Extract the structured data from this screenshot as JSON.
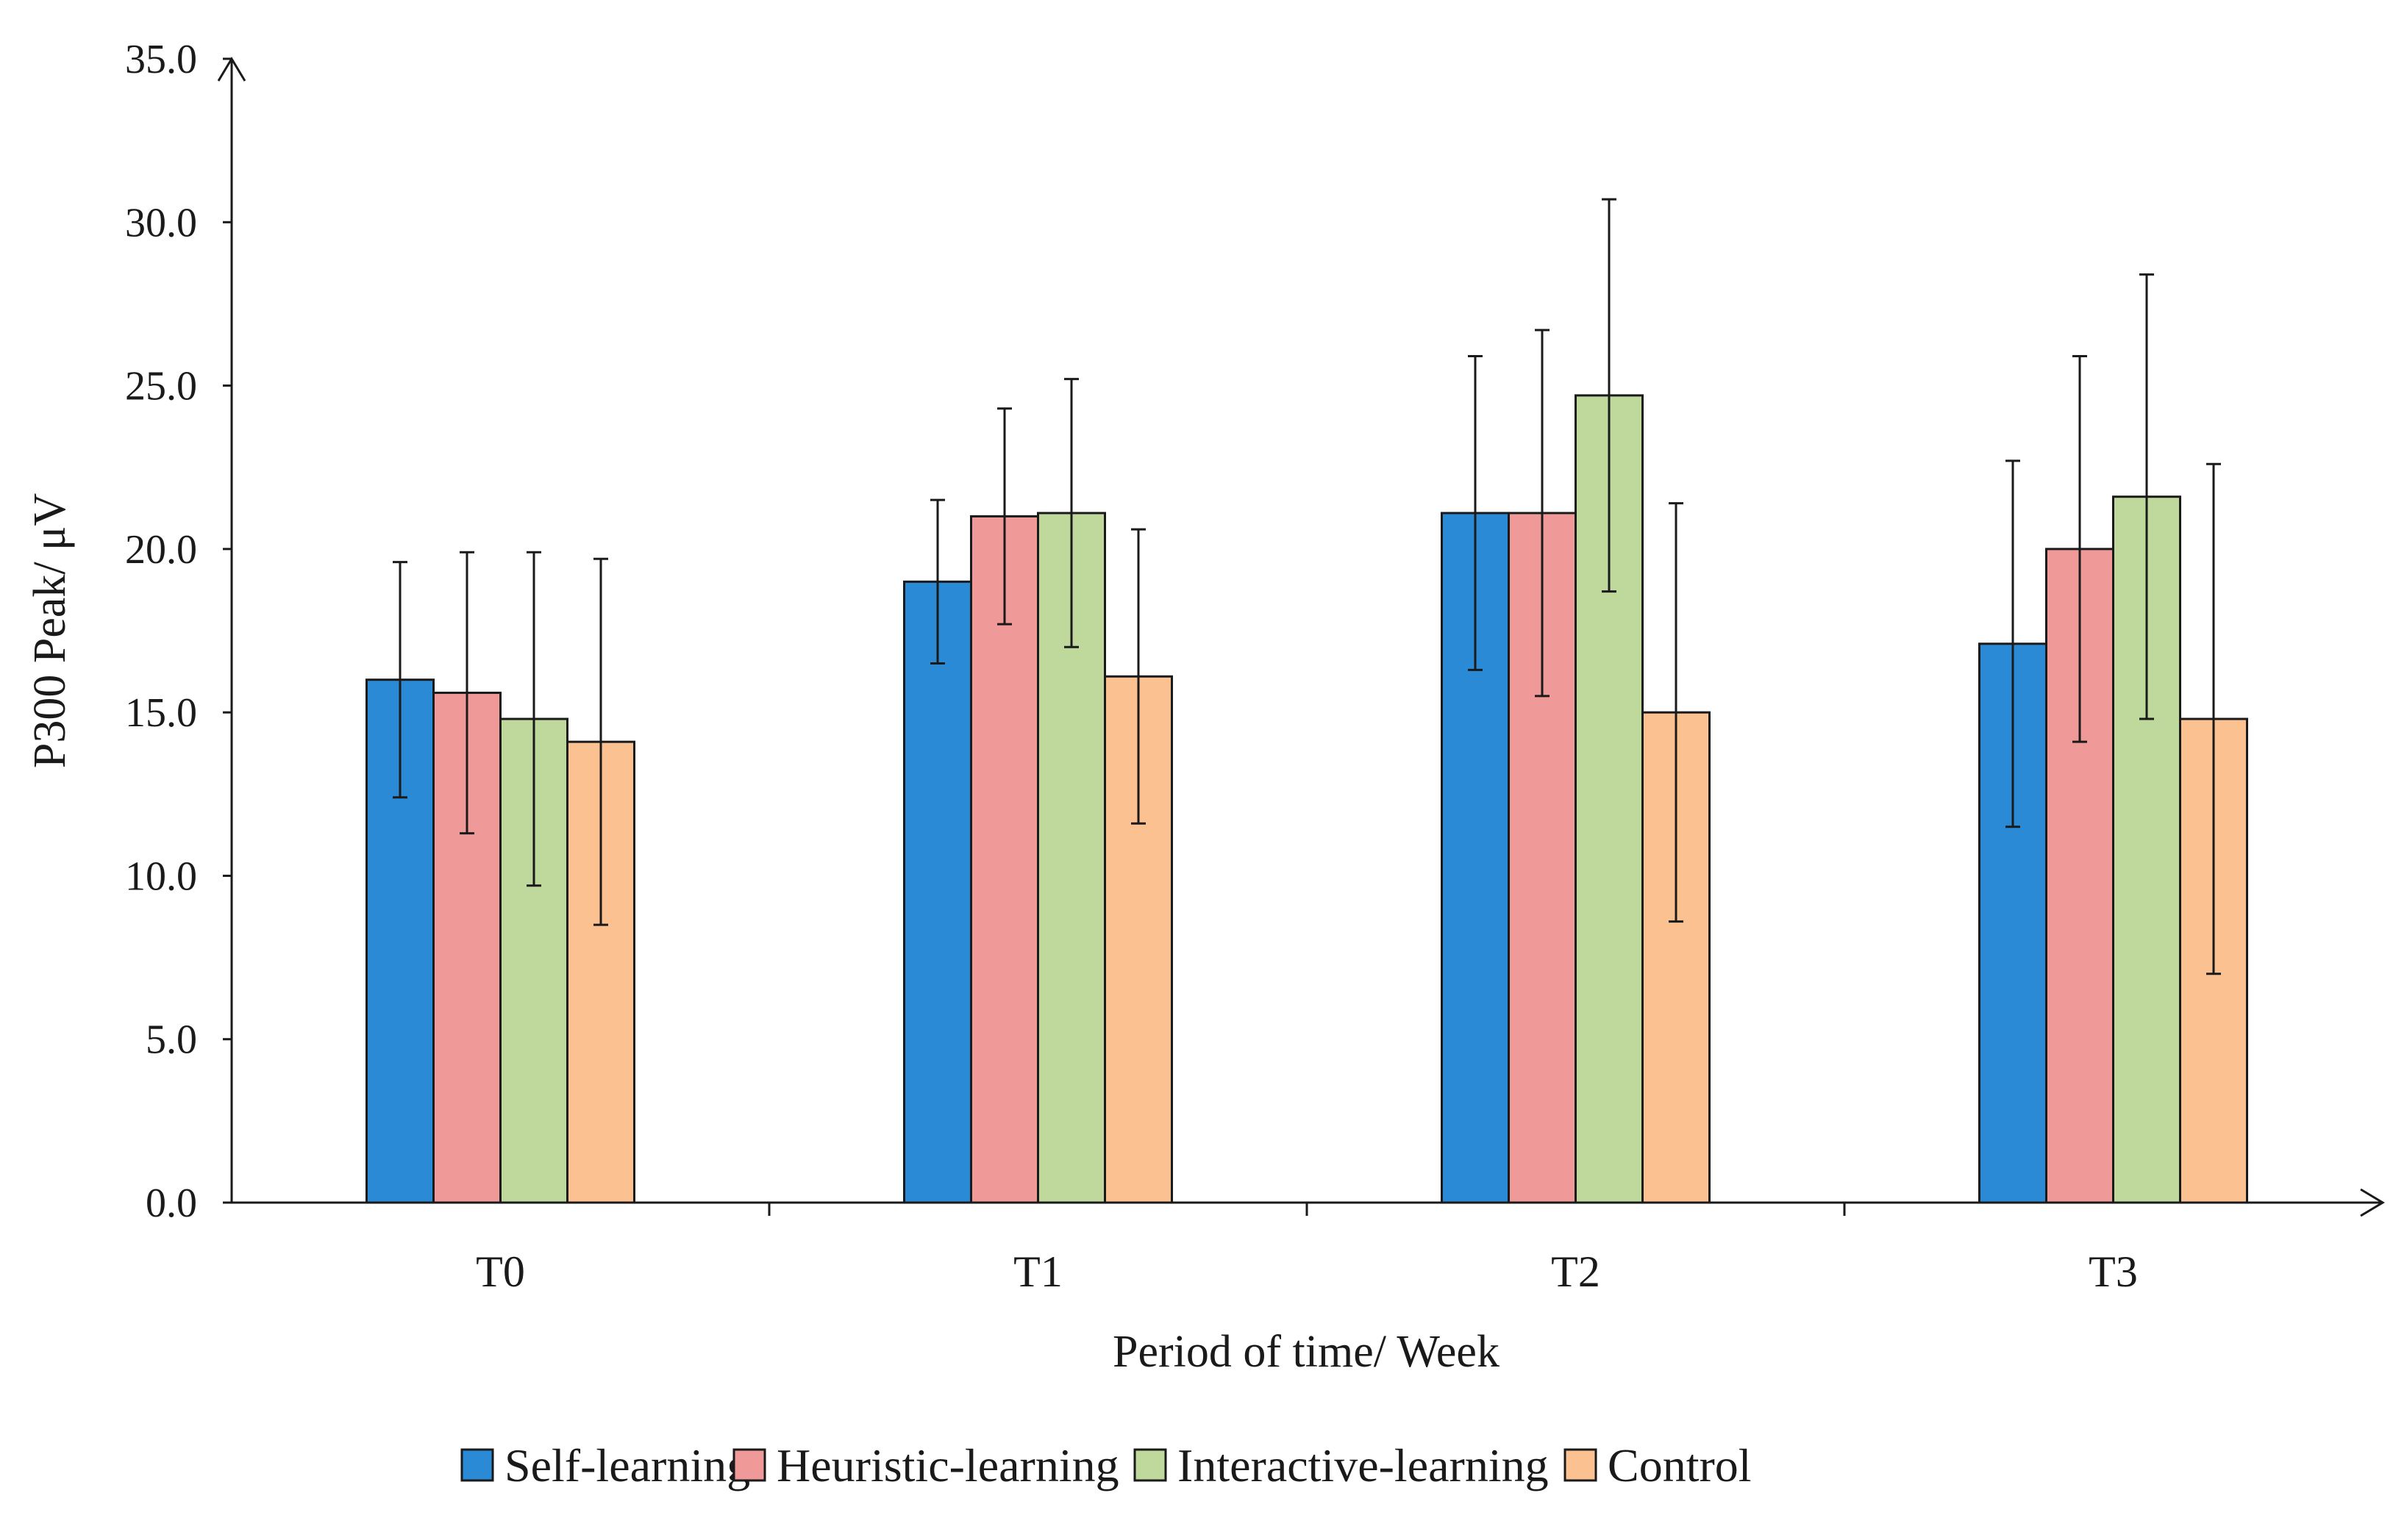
{
  "chart_data": {
    "type": "bar",
    "title": "",
    "xlabel": "Period of time/ Week",
    "ylabel": "P300 Peak/ μV",
    "ylim": [
      0,
      35
    ],
    "yticks": [
      "0.0",
      "5.0",
      "10.0",
      "15.0",
      "20.0",
      "25.0",
      "30.0",
      "35.0"
    ],
    "categories": [
      "T0",
      "T1",
      "T2",
      "T3"
    ],
    "grid": false,
    "legend_position": "bottom",
    "series": [
      {
        "name": "Self-learning",
        "color": "#2a8ad6",
        "values": [
          16.0,
          19.0,
          21.1,
          17.1
        ],
        "errors": [
          3.6,
          2.5,
          4.8,
          5.6
        ]
      },
      {
        "name": "Heuristic-learning",
        "color": "#ef9a98",
        "values": [
          15.6,
          21.0,
          21.1,
          20.0
        ],
        "errors": [
          4.3,
          3.3,
          5.6,
          5.9
        ]
      },
      {
        "name": "Interactive-learning",
        "color": "#bfd99d",
        "values": [
          14.8,
          21.1,
          24.7,
          21.6
        ],
        "errors": [
          5.1,
          4.1,
          6.0,
          6.8
        ]
      },
      {
        "name": "Control",
        "color": "#fcc191",
        "values": [
          14.1,
          16.1,
          15.0,
          14.8
        ],
        "errors": [
          5.6,
          4.5,
          6.4,
          7.8
        ]
      }
    ]
  }
}
